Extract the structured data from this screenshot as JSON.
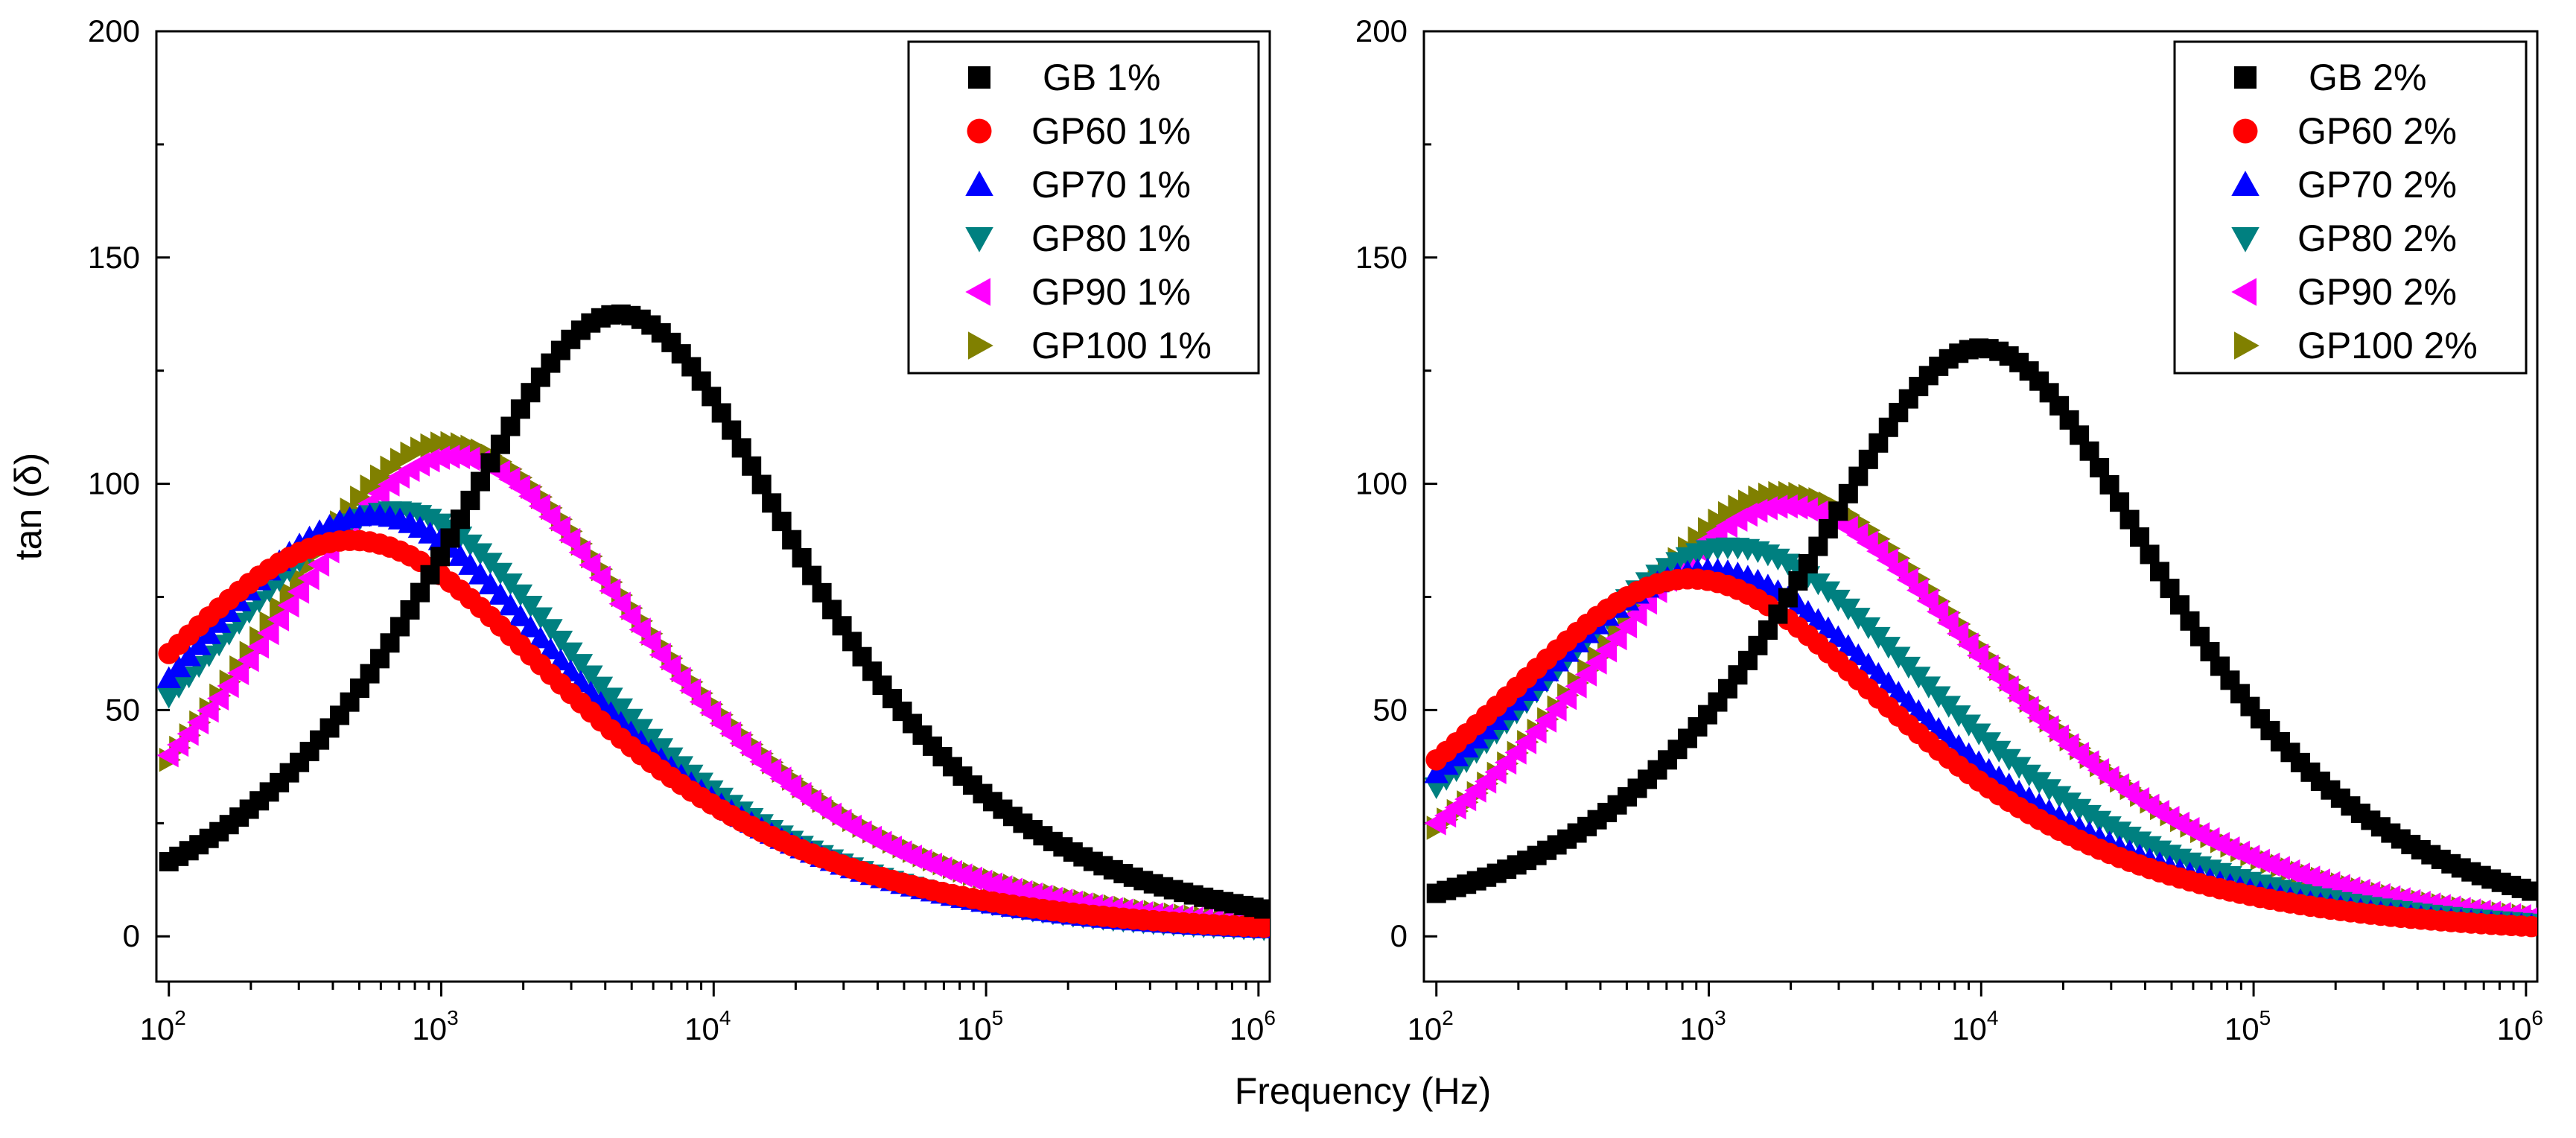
{
  "figure": {
    "xlabel": "Frequency (Hz)"
  },
  "chart_data": [
    {
      "type": "scatter",
      "title": "",
      "xlabel": "Frequency (Hz)",
      "ylabel": "tan (δ)",
      "xscale": "log",
      "xlim": [
        90,
        1100000
      ],
      "ylim": [
        -10,
        200
      ],
      "yticks": [
        "0",
        "50",
        "100",
        "150",
        "200"
      ],
      "xticks": [
        {
          "base": "10",
          "exp": "2"
        },
        {
          "base": "10",
          "exp": "3"
        },
        {
          "base": "10",
          "exp": "4"
        },
        {
          "base": "10",
          "exp": "5"
        },
        {
          "base": "10",
          "exp": "6"
        }
      ],
      "legend_position": "top-right",
      "series": [
        {
          "name": "GB 1%",
          "marker": "square",
          "color": "#000000",
          "peak_freq": 4500,
          "peak_value": 137.5,
          "low_value": 16.5,
          "width": 0.62,
          "skew": 1.0
        },
        {
          "name": "GP60 1%",
          "marker": "circle",
          "color": "#ff0000",
          "peak_freq": 470,
          "peak_value": 87.5,
          "low_value": 62.5,
          "width": 0.75,
          "skew": 1.0
        },
        {
          "name": "GP70 1%",
          "marker": "triangle-up",
          "color": "#0000ff",
          "peak_freq": 560,
          "peak_value": 93.0,
          "low_value": 57.0,
          "width": 0.7,
          "skew": 1.0
        },
        {
          "name": "GP80 1%",
          "marker": "triangle-down",
          "color": "#008080",
          "peak_freq": 680,
          "peak_value": 94.0,
          "low_value": 53.0,
          "width": 0.67,
          "skew": 1.0
        },
        {
          "name": "GP90 1%",
          "marker": "triangle-left",
          "color": "#ff00ff",
          "peak_freq": 1100,
          "peak_value": 106.0,
          "low_value": 40.0,
          "width": 0.68,
          "skew": 1.0
        },
        {
          "name": "GP100 1%",
          "marker": "triangle-right",
          "color": "#808000",
          "peak_freq": 1050,
          "peak_value": 109.0,
          "low_value": 39.0,
          "width": 0.7,
          "skew": 1.0
        }
      ]
    },
    {
      "type": "scatter",
      "title": "",
      "xlabel": "Frequency (Hz)",
      "ylabel": "",
      "xscale": "log",
      "xlim": [
        90,
        1100000
      ],
      "ylim": [
        -10,
        200
      ],
      "yticks": [
        "0",
        "50",
        "100",
        "150",
        "200"
      ],
      "xticks": [
        {
          "base": "10",
          "exp": "2"
        },
        {
          "base": "10",
          "exp": "3"
        },
        {
          "base": "10",
          "exp": "4"
        },
        {
          "base": "10",
          "exp": "5"
        },
        {
          "base": "10",
          "exp": "6"
        }
      ],
      "legend_position": "top-right",
      "series": [
        {
          "name": "GB 2%",
          "marker": "square",
          "color": "#000000",
          "peak_freq": 10000,
          "peak_value": 130.0,
          "low_value": 9.5,
          "width": 0.62,
          "skew": 1.0
        },
        {
          "name": "GP60 2%",
          "marker": "circle",
          "color": "#ff0000",
          "peak_freq": 850,
          "peak_value": 79.0,
          "low_value": 39.0,
          "width": 0.72,
          "skew": 1.0
        },
        {
          "name": "GP70 2%",
          "marker": "triangle-up",
          "color": "#0000ff",
          "peak_freq": 1000,
          "peak_value": 81.0,
          "low_value": 36.0,
          "width": 0.72,
          "skew": 1.0
        },
        {
          "name": "GP80 2%",
          "marker": "triangle-down",
          "color": "#008080",
          "peak_freq": 1200,
          "peak_value": 86.0,
          "low_value": 33.0,
          "width": 0.72,
          "skew": 1.0
        },
        {
          "name": "GP90 2%",
          "marker": "triangle-left",
          "color": "#ff00ff",
          "peak_freq": 1900,
          "peak_value": 95.0,
          "low_value": 25.0,
          "width": 0.72,
          "skew": 1.0
        },
        {
          "name": "GP100 2%",
          "marker": "triangle-right",
          "color": "#808000",
          "peak_freq": 1900,
          "peak_value": 98.0,
          "low_value": 24.0,
          "width": 0.72,
          "skew": 1.0
        }
      ]
    }
  ]
}
